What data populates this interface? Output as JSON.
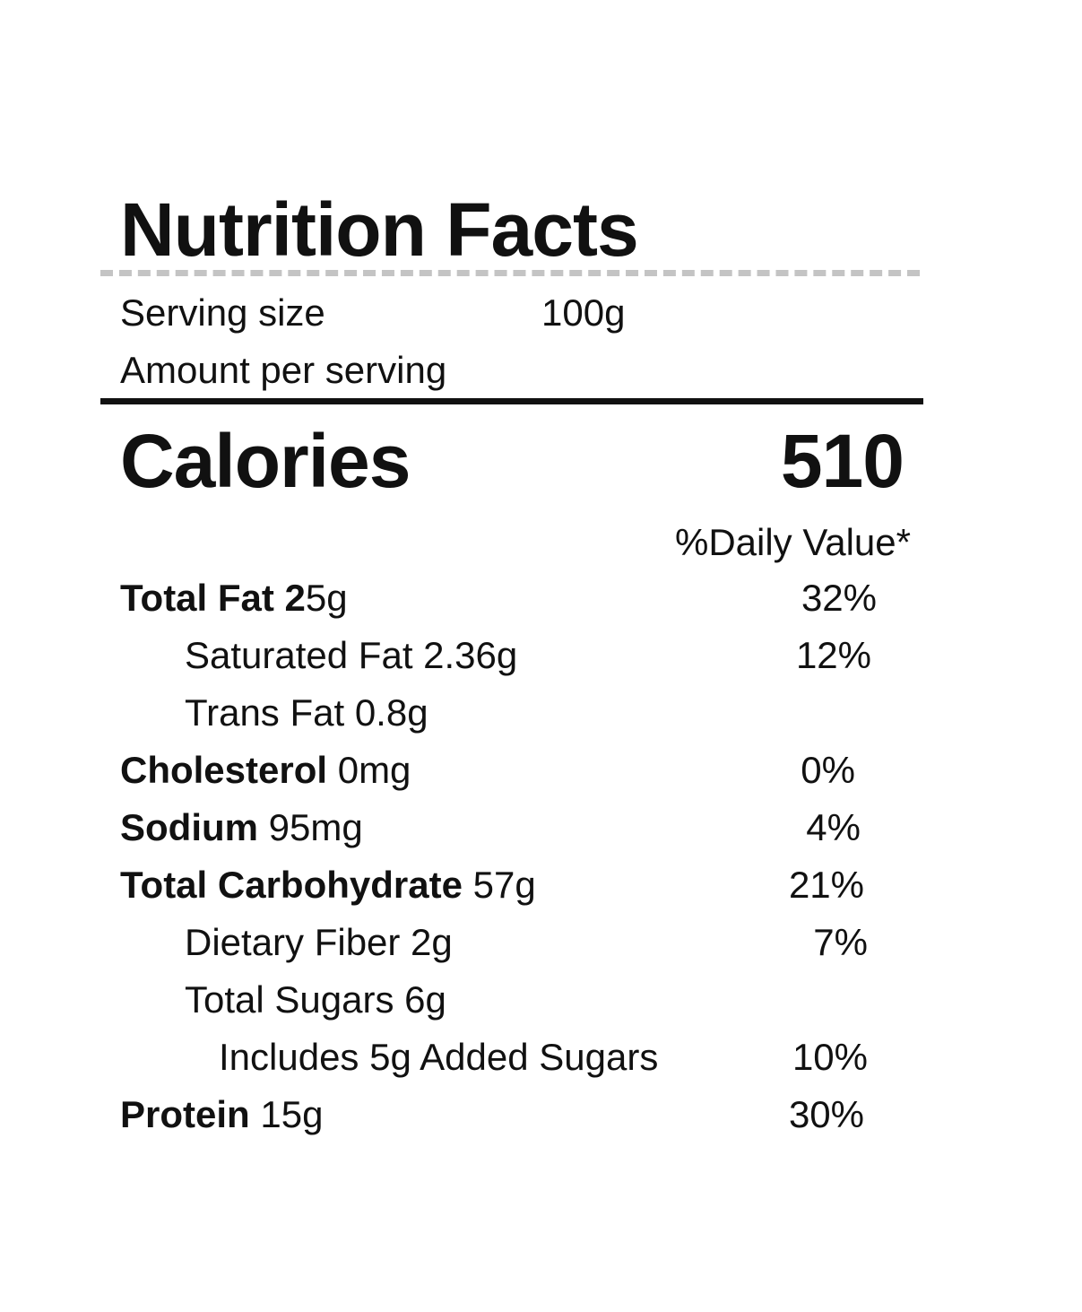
{
  "title": "Nutrition Facts",
  "serving": {
    "label": "Serving size",
    "value": "100g"
  },
  "amount_per_serving": "Amount per serving",
  "calories": {
    "label": "Calories",
    "value": "510"
  },
  "daily_value_header": "%Daily Value*",
  "nutrients": [
    {
      "name": "Total Fat 2",
      "amount": "5g",
      "dv": "32%"
    },
    {
      "name": "",
      "amount": "Saturated Fat 2.36g",
      "dv": "12%"
    },
    {
      "name": "",
      "amount": "Trans Fat 0.8g",
      "dv": ""
    },
    {
      "name": "Cholesterol",
      "amount": " 0mg",
      "dv": "0%"
    },
    {
      "name": "Sodium",
      "amount": " 95mg",
      "dv": "4%"
    },
    {
      "name": "Total Carbohydrate",
      "amount": " 57g",
      "dv": "21%"
    },
    {
      "name": "",
      "amount": "Dietary Fiber 2g",
      "dv": "7%"
    },
    {
      "name": "",
      "amount": "Total Sugars 6g",
      "dv": ""
    },
    {
      "name": "",
      "amount": "Includes 5g Added Sugars",
      "dv": "10%"
    },
    {
      "name": "Protein",
      "amount": " 15g",
      "dv": "30%"
    }
  ],
  "colors": {
    "text": "#111111",
    "dashed_rule": "#c4c4c4",
    "background": "#ffffff"
  }
}
